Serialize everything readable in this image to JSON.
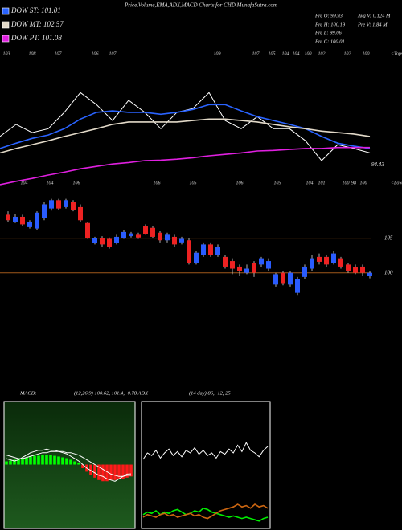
{
  "header": {
    "title": "Price,Volume,EMA,ADX,MACD Charts for CHD MunafaSutra.com",
    "info": [
      [
        "Pre O: 99.93",
        "Avg V: 0.124 M"
      ],
      [
        "Pre H: 100.19",
        "Pre V: 1.84 M"
      ],
      [
        "Pre L: 99.06"
      ],
      [
        "Pre C: 100.01"
      ]
    ]
  },
  "indicators": {
    "macd_label": "MACD:",
    "macd_params": "(12,26,9) 100.62, 101.4, -0.78 ADX",
    "adx_params": "(14 day) 86, -12, 25"
  },
  "chart_data": [
    {
      "type": "line",
      "ylim": [
        90.3,
        118.6
      ],
      "top_labels": [
        103,
        108,
        107,
        106,
        107,
        109,
        107,
        105,
        104,
        104,
        100,
        102,
        102,
        100
      ],
      "top_caption": "<Tops",
      "bottom_labels": [
        104,
        104,
        106,
        106,
        105,
        106,
        105,
        104,
        101,
        100,
        98,
        100
      ],
      "bottom_caption": "<Lows",
      "last_low": 94.43,
      "series": [
        {
          "color": "#ffffff",
          "values": [
            100.3,
            102.8,
            101.1,
            101.9,
            105.3,
            109.4,
            106.9,
            103.6,
            107.8,
            105.3,
            101.9,
            105.3,
            106.1,
            109.4,
            103.6,
            101.9,
            104.4,
            101.9,
            101.9,
            99.4,
            95.3,
            98.6,
            97.8,
            96.9
          ]
        },
        {
          "name": "DOW ST: 101.01",
          "color": "#2a63ff",
          "values": [
            97.8,
            98.9,
            99.9,
            100.6,
            101.9,
            103.9,
            105.3,
            105.6,
            105.3,
            105.3,
            104.9,
            105.3,
            105.9,
            106.9,
            106.9,
            105.6,
            104.4,
            103.6,
            102.8,
            101.9,
            100.3,
            98.9,
            98.3,
            97.8
          ]
        },
        {
          "name": "DOW MT: 102.57",
          "color": "#e2d9c8",
          "values": [
            96.9,
            97.8,
            98.6,
            99.4,
            100.3,
            101.1,
            101.9,
            102.8,
            103.3,
            103.3,
            103.3,
            103.3,
            103.6,
            103.9,
            103.9,
            103.6,
            103.3,
            102.8,
            102.3,
            101.9,
            101.4,
            101.1,
            100.8,
            100.3
          ]
        },
        {
          "name": "DOW PT: 101.08",
          "color": "#e020e0",
          "values": [
            90.3,
            91.0,
            91.6,
            92.3,
            92.9,
            93.6,
            94.1,
            94.6,
            94.9,
            95.3,
            95.4,
            95.6,
            95.9,
            96.3,
            96.6,
            96.9,
            97.3,
            97.4,
            97.6,
            97.8,
            97.8,
            98.0,
            98.0,
            98.0
          ]
        }
      ]
    },
    {
      "type": "candlestick",
      "ylim": [
        95.9,
        111.0
      ],
      "yticks": [
        105,
        100
      ],
      "grid_color": "#a0581a",
      "up_color": "#2a5cff",
      "down_color": "#ee2222",
      "open": [
        108.4,
        107.4,
        108.1,
        106.6,
        106.4,
        107.9,
        109.3,
        110.5,
        109.5,
        110.2,
        109.5,
        107.2,
        104.3,
        105.0,
        104.9,
        104.3,
        105.0,
        105.3,
        105.5,
        106.7,
        106.5,
        105.8,
        104.7,
        105.2,
        104.4,
        104.7,
        101.4,
        102.6,
        104.1,
        102.6,
        102.3,
        101.7,
        100.9,
        100.0,
        101.4,
        101.2,
        100.6,
        98.3,
        100.0,
        98.3,
        97.1,
        99.4,
        100.6,
        102.3,
        102.3,
        101.4,
        102.1,
        101.2,
        100.8,
        100.9,
        99.5
      ],
      "high": [
        108.9,
        108.5,
        108.4,
        107.6,
        108.9,
        110.2,
        110.7,
        110.7,
        110.7,
        110.5,
        109.9,
        107.4,
        105.2,
        105.3,
        105.1,
        105.5,
        106.2,
        105.9,
        105.8,
        107.0,
        106.7,
        106.0,
        105.8,
        105.5,
        105.2,
        105.0,
        103.2,
        104.4,
        104.4,
        104.1,
        102.6,
        102.1,
        101.2,
        101.2,
        101.7,
        102.3,
        102.1,
        100.0,
        100.2,
        100.2,
        99.4,
        101.2,
        102.6,
        102.8,
        102.6,
        103.2,
        102.3,
        101.4,
        101.2,
        101.2,
        100.2
      ],
      "low": [
        107.3,
        107.2,
        106.7,
        106.4,
        106.2,
        107.6,
        109.0,
        109.1,
        109.3,
        108.9,
        107.4,
        104.9,
        104.1,
        103.7,
        103.5,
        104.1,
        104.9,
        105.1,
        104.9,
        105.5,
        105.0,
        104.4,
        104.4,
        103.7,
        104.1,
        101.2,
        101.2,
        102.3,
        102.3,
        102.3,
        100.6,
        99.8,
        99.5,
        99.8,
        99.4,
        100.9,
        100.3,
        98.0,
        98.2,
        98.0,
        96.8,
        99.1,
        100.3,
        101.2,
        100.9,
        101.2,
        100.6,
        100.0,
        99.8,
        99.5,
        99.2
      ],
      "close": [
        107.6,
        108.1,
        107.0,
        107.3,
        108.7,
        109.9,
        110.5,
        109.3,
        110.5,
        109.1,
        107.6,
        105.0,
        105.0,
        104.1,
        103.7,
        105.2,
        105.9,
        105.7,
        105.1,
        105.6,
        105.2,
        104.7,
        105.5,
        104.1,
        104.9,
        101.4,
        102.9,
        104.1,
        102.6,
        103.7,
        100.9,
        100.6,
        100.2,
        100.6,
        100.0,
        102.1,
        101.7,
        99.8,
        98.4,
        100.0,
        99.1,
        100.9,
        102.1,
        101.6,
        101.2,
        102.8,
        100.9,
        100.3,
        100.0,
        100.0,
        100.0
      ]
    },
    {
      "type": "macd",
      "ylim": [
        -5.5,
        5.3
      ],
      "positive_color": "#00ff00",
      "negative_color": "#ff1a1a",
      "line_color": "#ffffff",
      "histogram": [
        0.27,
        0.34,
        0.41,
        0.47,
        0.54,
        0.61,
        0.68,
        0.74,
        0.74,
        0.81,
        0.81,
        0.81,
        0.74,
        0.68,
        0.61,
        0.54,
        0.41,
        0.27,
        0.14,
        -0.3,
        -0.6,
        -0.9,
        -1.1,
        -1.3,
        -1.4,
        -1.4,
        -1.3,
        -1.3,
        -1.2,
        -1.2,
        -1.1,
        -1.0
      ],
      "macd": [
        0.5,
        0.4,
        0.3,
        0.4,
        0.6,
        0.8,
        1.0,
        1.1,
        1.2,
        1.2,
        1.3,
        1.2,
        1.2,
        1.1,
        1.0,
        0.9,
        0.7,
        0.5,
        0.3,
        0.0,
        -0.3,
        -0.5,
        -0.7,
        -0.9,
        -1.0,
        -1.2,
        -1.3,
        -1.4,
        -1.2,
        -1.0,
        -0.8,
        -0.78
      ],
      "signal": [
        0.8,
        0.7,
        0.6,
        0.5,
        0.5,
        0.6,
        0.7,
        0.8,
        0.9,
        1.0,
        1.0,
        1.1,
        1.1,
        1.1,
        1.1,
        1.0,
        1.0,
        0.9,
        0.8,
        0.6,
        0.4,
        0.2,
        0.0,
        -0.2,
        -0.4,
        -0.6,
        -0.8,
        -0.9,
        -1.0,
        -1.0,
        -0.9,
        -0.9
      ]
    },
    {
      "type": "line",
      "ylim": [
        0,
        100
      ],
      "series": [
        {
          "color": "#ffffff",
          "values": [
            55,
            60,
            58,
            62,
            56,
            60,
            63,
            58,
            61,
            57,
            62,
            60,
            64,
            59,
            62,
            58,
            60,
            56,
            61,
            59,
            63,
            60,
            66,
            61,
            68,
            62,
            60,
            57,
            62,
            65
          ]
        },
        {
          "color": "#00ee00",
          "values": [
            12,
            14,
            13,
            15,
            12,
            14,
            13,
            15,
            16,
            14,
            12,
            13,
            15,
            14,
            17,
            16,
            14,
            13,
            12,
            11,
            10,
            11,
            10,
            9,
            10,
            9,
            8,
            7,
            9,
            10
          ]
        },
        {
          "color": "#cc6611",
          "values": [
            10,
            12,
            11,
            10,
            12,
            13,
            11,
            12,
            10,
            11,
            12,
            13,
            11,
            12,
            10,
            9,
            11,
            13,
            15,
            16,
            17,
            18,
            20,
            18,
            19,
            17,
            20,
            18,
            19,
            17
          ]
        }
      ]
    }
  ]
}
